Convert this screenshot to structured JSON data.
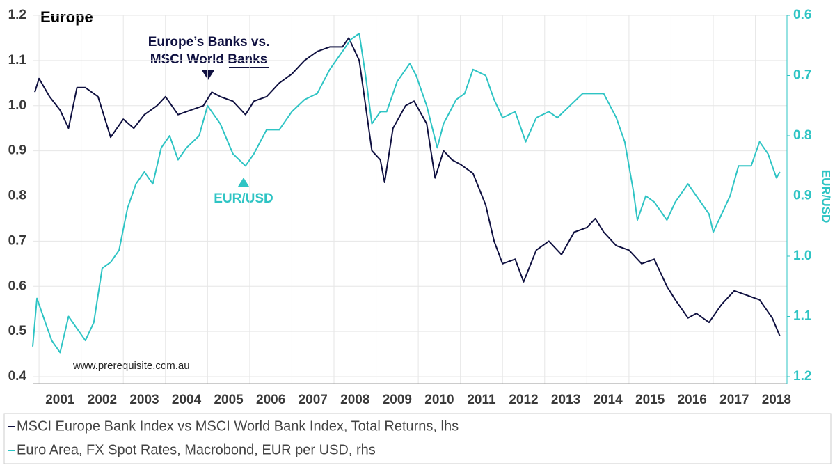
{
  "chart_data": {
    "type": "line",
    "title": "Europe",
    "annotations": {
      "banks": [
        "Europe’s Banks vs.",
        "MSCI World Banks"
      ],
      "fx": "EUR/USD",
      "source": "www.prerequisite.com.au"
    },
    "y2label": "EUR/USD",
    "xlim": [
      2000.85,
      2018.75
    ],
    "xticks": [
      2001,
      2002,
      2003,
      2004,
      2005,
      2006,
      2007,
      2008,
      2009,
      2010,
      2011,
      2012,
      2013,
      2014,
      2015,
      2016,
      2017,
      2018
    ],
    "ylim": [
      0.4,
      1.2
    ],
    "yticks": [
      0.4,
      0.5,
      0.6,
      0.7,
      0.8,
      0.9,
      {
        "value": 1,
        "label": "1.0"
      },
      1.1,
      1.2
    ],
    "y2lim": [
      0.6,
      1.2
    ],
    "y2inverted": true,
    "y2ticks": [
      0.6,
      0.7,
      0.8,
      0.9,
      {
        "value": 1,
        "label": "1.0"
      },
      1.1,
      1.2
    ],
    "grid": true,
    "series": [
      {
        "name": "MSCI Europe Bank Index vs MSCI World Bank Index, Total Returns, lhs",
        "color": "#0f1040",
        "x": [
          2000.9,
          2001.0,
          2001.25,
          2001.5,
          2001.7,
          2001.9,
          2002.1,
          2002.4,
          2002.7,
          2003.0,
          2003.25,
          2003.5,
          2003.8,
          2004.0,
          2004.3,
          2004.6,
          2004.9,
          2005.1,
          2005.3,
          2005.6,
          2005.9,
          2006.1,
          2006.4,
          2006.7,
          2007.0,
          2007.3,
          2007.6,
          2007.9,
          2008.2,
          2008.35,
          2008.6,
          2008.75,
          2008.9,
          2009.1,
          2009.2,
          2009.4,
          2009.7,
          2009.9,
          2010.2,
          2010.4,
          2010.6,
          2010.8,
          2011.0,
          2011.3,
          2011.6,
          2011.8,
          2012.0,
          2012.3,
          2012.5,
          2012.8,
          2013.1,
          2013.4,
          2013.7,
          2014.0,
          2014.2,
          2014.4,
          2014.7,
          2015.0,
          2015.3,
          2015.6,
          2015.9,
          2016.1,
          2016.4,
          2016.6,
          2016.9,
          2017.2,
          2017.5,
          2017.8,
          2018.1,
          2018.4,
          2018.58
        ],
        "values": [
          1.03,
          1.06,
          1.02,
          0.99,
          0.95,
          1.04,
          1.04,
          1.02,
          0.93,
          0.97,
          0.95,
          0.98,
          1.0,
          1.02,
          0.98,
          0.99,
          1.0,
          1.03,
          1.02,
          1.01,
          0.98,
          1.01,
          1.02,
          1.05,
          1.07,
          1.1,
          1.12,
          1.13,
          1.13,
          1.15,
          1.1,
          1.0,
          0.9,
          0.88,
          0.83,
          0.95,
          1.0,
          1.01,
          0.96,
          0.84,
          0.9,
          0.88,
          0.87,
          0.85,
          0.78,
          0.7,
          0.65,
          0.66,
          0.61,
          0.68,
          0.7,
          0.67,
          0.72,
          0.73,
          0.75,
          0.72,
          0.69,
          0.68,
          0.65,
          0.66,
          0.6,
          0.57,
          0.53,
          0.54,
          0.52,
          0.56,
          0.59,
          0.58,
          0.57,
          0.53,
          0.49
        ]
      },
      {
        "name": "Euro Area, FX Spot Rates, Macrobond, EUR per USD, rhs",
        "color": "#2ec4c4",
        "axis": "y2",
        "x": [
          2000.85,
          2000.95,
          2001.1,
          2001.3,
          2001.5,
          2001.7,
          2001.9,
          2002.1,
          2002.3,
          2002.5,
          2002.7,
          2002.9,
          2003.1,
          2003.3,
          2003.5,
          2003.7,
          2003.9,
          2004.1,
          2004.3,
          2004.5,
          2004.8,
          2005.0,
          2005.3,
          2005.6,
          2005.9,
          2006.1,
          2006.4,
          2006.7,
          2007.0,
          2007.3,
          2007.6,
          2007.9,
          2008.2,
          2008.4,
          2008.6,
          2008.75,
          2008.9,
          2009.1,
          2009.25,
          2009.5,
          2009.8,
          2009.95,
          2010.2,
          2010.45,
          2010.6,
          2010.9,
          2011.1,
          2011.3,
          2011.6,
          2011.8,
          2012.0,
          2012.3,
          2012.55,
          2012.8,
          2013.1,
          2013.3,
          2013.6,
          2013.9,
          2014.1,
          2014.4,
          2014.7,
          2014.9,
          2015.1,
          2015.2,
          2015.4,
          2015.6,
          2015.9,
          2016.1,
          2016.4,
          2016.6,
          2016.9,
          2017.0,
          2017.2,
          2017.4,
          2017.6,
          2017.9,
          2018.1,
          2018.3,
          2018.5,
          2018.58
        ],
        "values": [
          1.15,
          1.07,
          1.1,
          1.14,
          1.16,
          1.1,
          1.12,
          1.14,
          1.11,
          1.02,
          1.01,
          0.99,
          0.92,
          0.88,
          0.86,
          0.88,
          0.82,
          0.8,
          0.84,
          0.82,
          0.8,
          0.75,
          0.78,
          0.83,
          0.85,
          0.83,
          0.79,
          0.79,
          0.76,
          0.74,
          0.73,
          0.69,
          0.66,
          0.64,
          0.63,
          0.7,
          0.78,
          0.76,
          0.76,
          0.71,
          0.68,
          0.7,
          0.75,
          0.82,
          0.78,
          0.74,
          0.73,
          0.69,
          0.7,
          0.74,
          0.77,
          0.76,
          0.81,
          0.77,
          0.76,
          0.77,
          0.75,
          0.73,
          0.73,
          0.73,
          0.77,
          0.81,
          0.89,
          0.94,
          0.9,
          0.91,
          0.94,
          0.91,
          0.88,
          0.9,
          0.93,
          0.96,
          0.93,
          0.9,
          0.85,
          0.85,
          0.81,
          0.83,
          0.87,
          0.86
        ]
      }
    ]
  }
}
